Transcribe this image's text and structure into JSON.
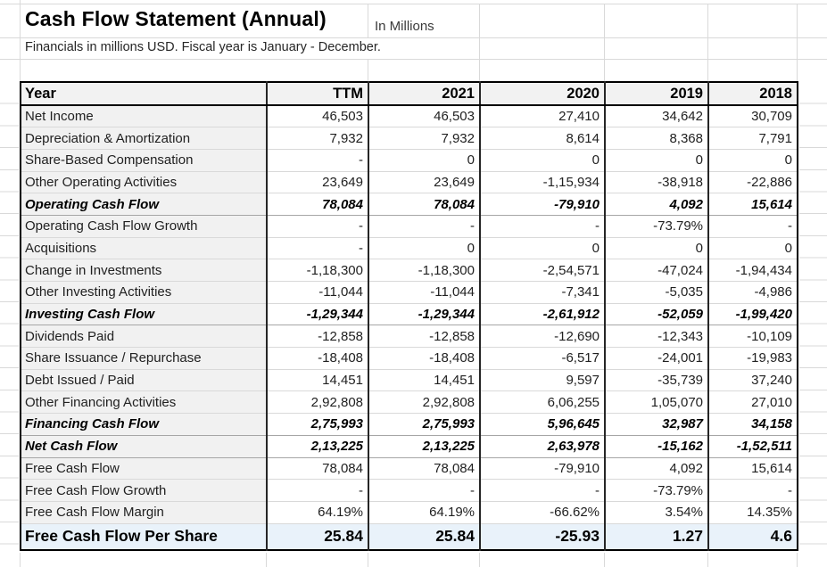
{
  "header": {
    "title": "Cash Flow Statement (Annual)",
    "unit_label": "In Millions",
    "subtitle": "Financials in millions USD. Fiscal year is January - December."
  },
  "colors": {
    "header_bg": "#f2f2f2",
    "label_bg": "#f1f1f1",
    "pershare_bg": "#e9f2fa",
    "gridline": "#d9d9d9",
    "total_row_border": "#a6a6a6",
    "table_border": "#000000"
  },
  "table": {
    "columns": [
      "Year",
      "TTM",
      "2021",
      "2020",
      "2019",
      "2018"
    ],
    "rows": [
      {
        "label": "Net Income",
        "style": "normal",
        "values": [
          "46,503",
          "46,503",
          "27,410",
          "34,642",
          "30,709"
        ]
      },
      {
        "label": "Depreciation & Amortization",
        "style": "normal",
        "values": [
          "7,932",
          "7,932",
          "8,614",
          "8,368",
          "7,791"
        ]
      },
      {
        "label": "Share-Based Compensation",
        "style": "normal",
        "values": [
          "-",
          "0",
          "0",
          "0",
          "0"
        ]
      },
      {
        "label": "Other Operating Activities",
        "style": "normal",
        "values": [
          "23,649",
          "23,649",
          "-1,15,934",
          "-38,918",
          "-22,886"
        ]
      },
      {
        "label": "Operating Cash Flow",
        "style": "total",
        "values": [
          "78,084",
          "78,084",
          "-79,910",
          "4,092",
          "15,614"
        ]
      },
      {
        "label": "Operating Cash Flow Growth",
        "style": "normal",
        "values": [
          "-",
          "-",
          "-",
          "-73.79%",
          "-"
        ]
      },
      {
        "label": "Acquisitions",
        "style": "normal",
        "values": [
          "-",
          "0",
          "0",
          "0",
          "0"
        ]
      },
      {
        "label": "Change in Investments",
        "style": "normal",
        "values": [
          "-1,18,300",
          "-1,18,300",
          "-2,54,571",
          "-47,024",
          "-1,94,434"
        ]
      },
      {
        "label": "Other Investing Activities",
        "style": "normal",
        "values": [
          "-11,044",
          "-11,044",
          "-7,341",
          "-5,035",
          "-4,986"
        ]
      },
      {
        "label": "Investing Cash Flow",
        "style": "total",
        "values": [
          "-1,29,344",
          "-1,29,344",
          "-2,61,912",
          "-52,059",
          "-1,99,420"
        ]
      },
      {
        "label": "Dividends Paid",
        "style": "normal",
        "values": [
          "-12,858",
          "-12,858",
          "-12,690",
          "-12,343",
          "-10,109"
        ]
      },
      {
        "label": "Share Issuance / Repurchase",
        "style": "normal",
        "values": [
          "-18,408",
          "-18,408",
          "-6,517",
          "-24,001",
          "-19,983"
        ]
      },
      {
        "label": "Debt Issued / Paid",
        "style": "normal",
        "values": [
          "14,451",
          "14,451",
          "9,597",
          "-35,739",
          "37,240"
        ]
      },
      {
        "label": "Other Financing Activities",
        "style": "normal",
        "values": [
          "2,92,808",
          "2,92,808",
          "6,06,255",
          "1,05,070",
          "27,010"
        ]
      },
      {
        "label": "Financing Cash Flow",
        "style": "total",
        "values": [
          "2,75,993",
          "2,75,993",
          "5,96,645",
          "32,987",
          "34,158"
        ]
      },
      {
        "label": "Net Cash Flow",
        "style": "total",
        "values": [
          "2,13,225",
          "2,13,225",
          "2,63,978",
          "-15,162",
          "-1,52,511"
        ]
      },
      {
        "label": "Free Cash Flow",
        "style": "normal",
        "values": [
          "78,084",
          "78,084",
          "-79,910",
          "4,092",
          "15,614"
        ]
      },
      {
        "label": "Free Cash Flow Growth",
        "style": "normal",
        "values": [
          "-",
          "-",
          "-",
          "-73.79%",
          "-"
        ]
      },
      {
        "label": "Free Cash Flow Margin",
        "style": "normal",
        "values": [
          "64.19%",
          "64.19%",
          "-66.62%",
          "3.54%",
          "14.35%"
        ]
      },
      {
        "label": "Free Cash Flow Per Share",
        "style": "pershare",
        "values": [
          "25.84",
          "25.84",
          "-25.93",
          "1.27",
          "4.6"
        ]
      }
    ]
  }
}
